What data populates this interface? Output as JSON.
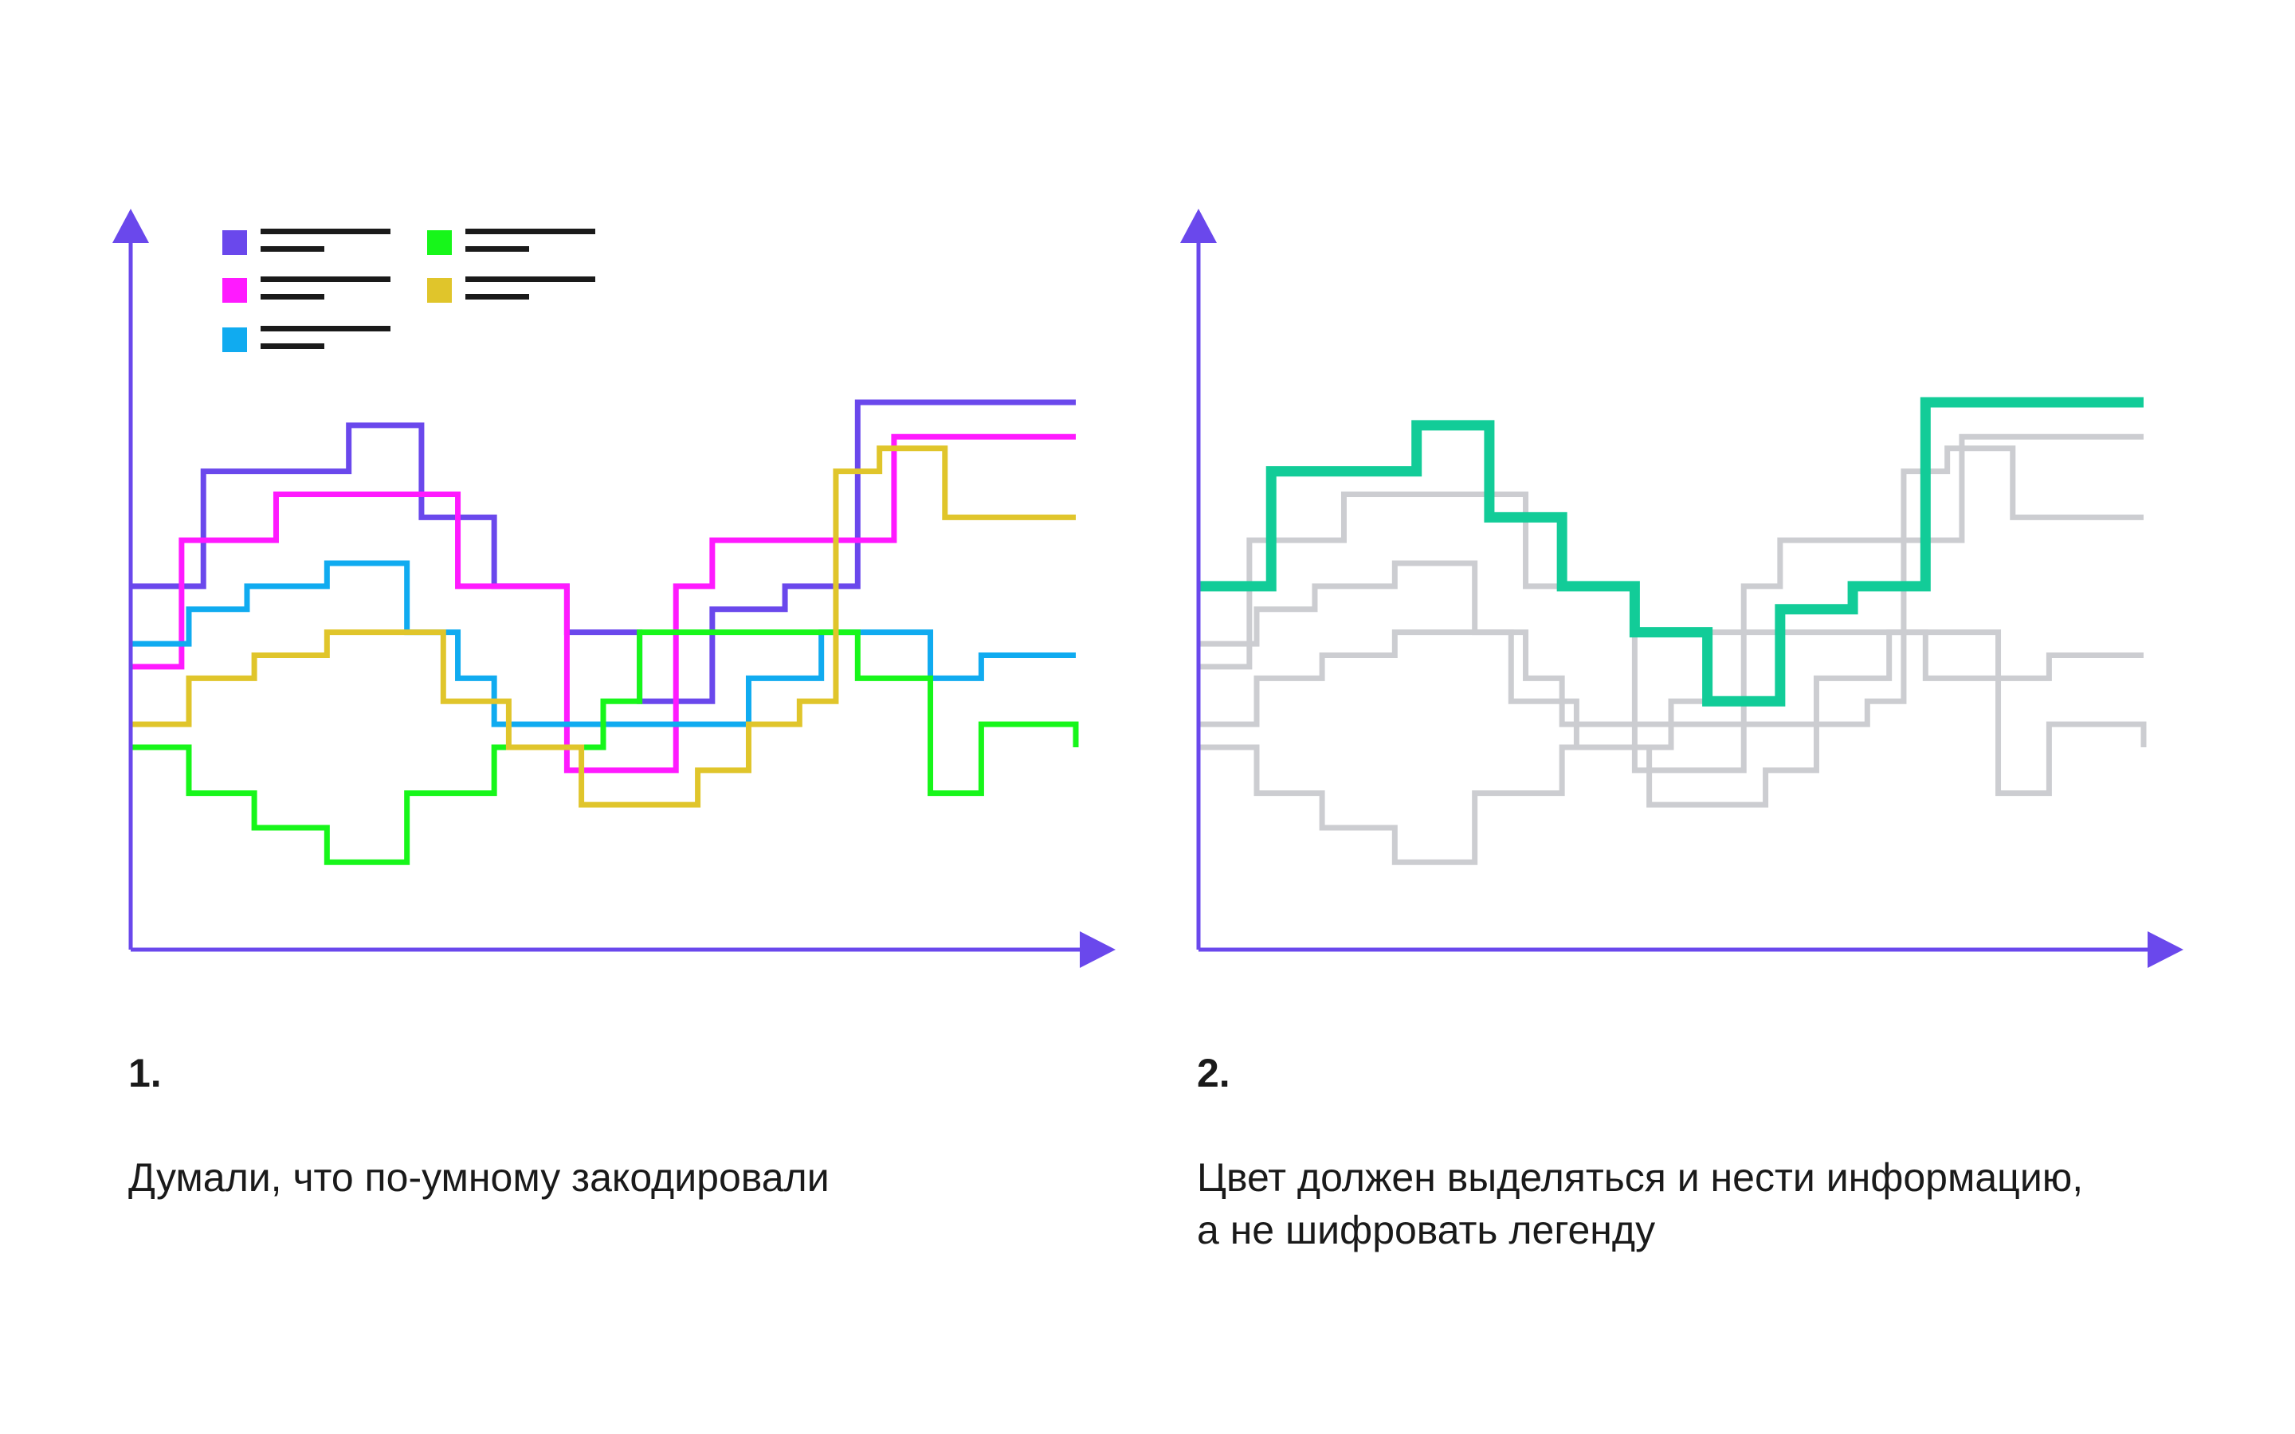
{
  "colors": {
    "axis": "#6a48ec",
    "muted": "#cccdd1",
    "highlight": "#12cc98",
    "legend_text": "#1a1a1a"
  },
  "captions": {
    "panel1_number": "1.",
    "panel1_text": "Думали, что по-умному закодировали",
    "panel2_number": "2.",
    "panel2_text": "Цвет должен выделяться и нести информацию, а не шифровать легенду"
  },
  "chart_data": [
    {
      "type": "line",
      "step": true,
      "title": "",
      "xlabel": "",
      "ylabel": "",
      "xlim": [
        0,
        13
      ],
      "ylim": [
        0,
        22
      ],
      "grid": false,
      "legend_position": "top-left",
      "series": [
        {
          "color": "#6a48ec",
          "x": [
            0,
            1,
            3,
            4,
            5,
            6,
            7,
            8,
            9,
            10,
            11,
            13
          ],
          "y": [
            14,
            19,
            21,
            17,
            14,
            12,
            9,
            13,
            14,
            22,
            22,
            22
          ]
        },
        {
          "color": "#ff1aff",
          "x": [
            0,
            0.7,
            2,
            4.5,
            6,
            7.5,
            8,
            9,
            10.5,
            11,
            13
          ],
          "y": [
            10.5,
            16,
            18,
            14,
            6,
            14,
            16,
            16,
            20.5,
            20.5,
            20.5
          ]
        },
        {
          "color": "#10abf0",
          "x": [
            0,
            0.8,
            1.6,
            2.7,
            3.8,
            4.5,
            5,
            6,
            8.5,
            9.5,
            11,
            11.7,
            13
          ],
          "y": [
            11.5,
            13,
            14,
            15,
            12,
            10,
            8,
            8,
            10,
            12,
            10,
            11,
            11
          ]
        },
        {
          "color": "#17f61a",
          "x": [
            0,
            0.8,
            1.7,
            2.7,
            3.8,
            5,
            6.5,
            7,
            10,
            11,
            11.7,
            13
          ],
          "y": [
            7,
            5,
            3.5,
            2,
            5,
            7,
            9,
            12,
            10,
            5,
            8,
            7
          ]
        },
        {
          "color": "#e0c52b",
          "x": [
            0,
            0.8,
            1.7,
            2.7,
            4.3,
            5.2,
            6.2,
            7.8,
            8.5,
            9.2,
            9.7,
            10.3,
            11.2,
            13
          ],
          "y": [
            8,
            10,
            11,
            12,
            9,
            7,
            4.5,
            6,
            8,
            9,
            19,
            20,
            17,
            17
          ]
        }
      ]
    },
    {
      "type": "line",
      "step": true,
      "title": "",
      "xlabel": "",
      "ylabel": "",
      "xlim": [
        0,
        13
      ],
      "ylim": [
        0,
        22
      ],
      "grid": false,
      "series": [
        {
          "color": "#cccdd1",
          "x": [
            0,
            0.7,
            2,
            4.5,
            6,
            7.5,
            8,
            9,
            10.5,
            11,
            13
          ],
          "y": [
            10.5,
            16,
            18,
            14,
            6,
            14,
            16,
            16,
            20.5,
            20.5,
            20.5
          ]
        },
        {
          "color": "#cccdd1",
          "x": [
            0,
            0.8,
            1.6,
            2.7,
            3.8,
            4.5,
            5,
            6,
            8.5,
            9.5,
            11,
            11.7,
            13
          ],
          "y": [
            11.5,
            13,
            14,
            15,
            12,
            10,
            8,
            8,
            10,
            12,
            10,
            11,
            11
          ]
        },
        {
          "color": "#cccdd1",
          "x": [
            0,
            0.8,
            1.7,
            2.7,
            3.8,
            5,
            6.5,
            7,
            10,
            11,
            11.7,
            13
          ],
          "y": [
            7,
            5,
            3.5,
            2,
            5,
            7,
            9,
            12,
            10,
            5,
            8,
            7
          ]
        },
        {
          "color": "#cccdd1",
          "x": [
            0,
            0.8,
            1.7,
            2.7,
            4.3,
            5.2,
            6.2,
            7.8,
            8.5,
            9.2,
            9.7,
            10.3,
            11.2,
            13
          ],
          "y": [
            8,
            10,
            11,
            12,
            9,
            7,
            4.5,
            6,
            8,
            9,
            19,
            20,
            17,
            17
          ]
        },
        {
          "color": "#12cc98",
          "x": [
            0,
            1,
            3,
            4,
            5,
            6,
            7,
            8,
            9,
            10,
            11,
            13
          ],
          "y": [
            14,
            19,
            21,
            17,
            14,
            12,
            9,
            13,
            14,
            22,
            22,
            22
          ]
        }
      ]
    }
  ]
}
